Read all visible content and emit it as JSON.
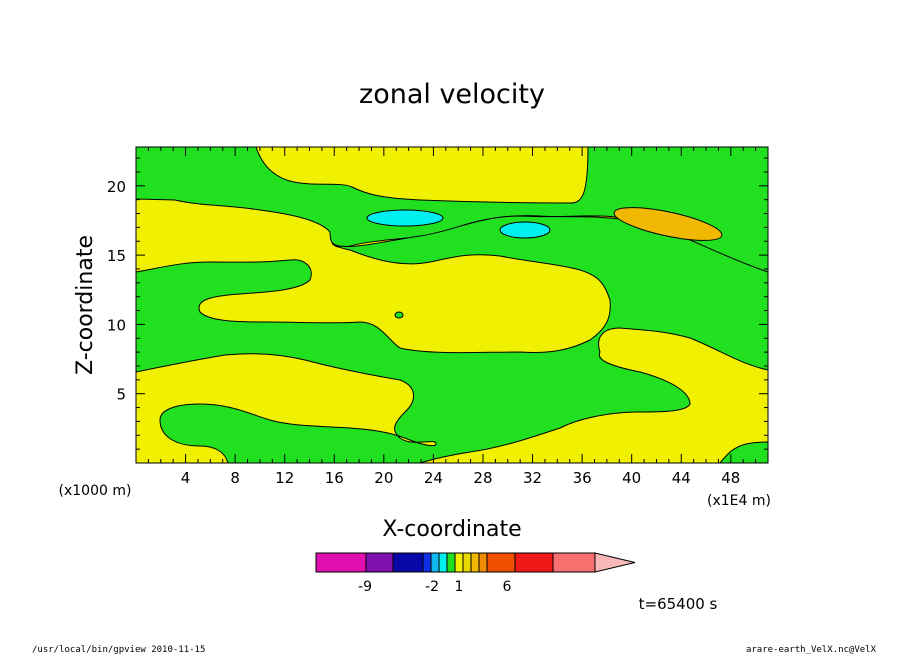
{
  "chart_data": {
    "type": "heatmap",
    "title": "zonal velocity",
    "xlabel": "X-coordinate",
    "ylabel": "Z-coordinate",
    "x_unit": "(x1E4 m)",
    "y_unit": "(x1000 m)",
    "x_ticks": [
      "4",
      "8",
      "12",
      "16",
      "20",
      "24",
      "28",
      "32",
      "36",
      "40",
      "44",
      "48"
    ],
    "y_ticks": [
      "5",
      "10",
      "15",
      "20"
    ],
    "xlim": [
      0,
      51
    ],
    "ylim": [
      0,
      22.8
    ],
    "colorbar": {
      "colors": [
        "#e010b0",
        "#8010b0",
        "#0808a8",
        "#1030e8",
        "#10b8f0",
        "#00f0f0",
        "#20e020",
        "#f0f000",
        "#e8d800",
        "#f0b800",
        "#f08c00",
        "#f05000",
        "#f01818",
        "#f87070",
        "#f8b8b8"
      ],
      "labels": [
        "-9",
        "-2",
        "1",
        "6"
      ]
    },
    "time_label": "t=65400 s"
  },
  "footer": {
    "left": "/usr/local/bin/gpview   2010-11-15",
    "right": "arare-earth_VelX.nc@VelX"
  }
}
